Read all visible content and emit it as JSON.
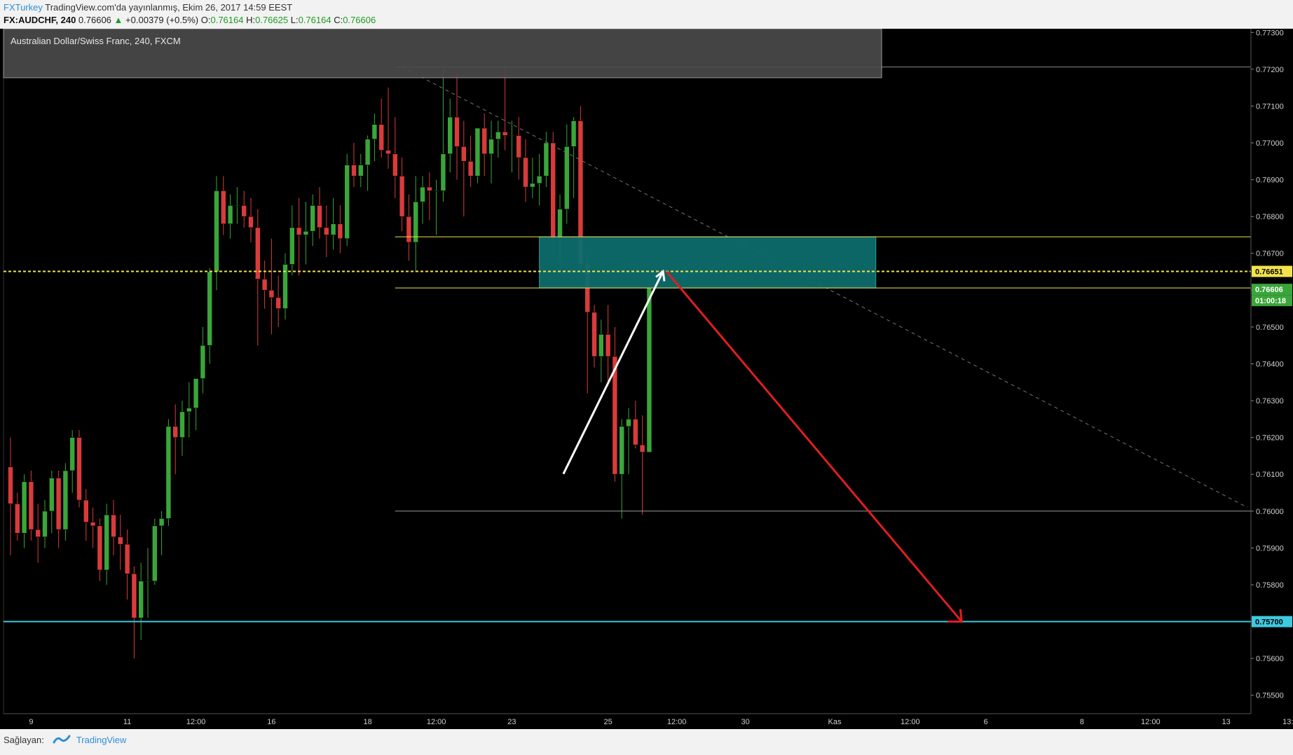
{
  "header": {
    "publisher": "FXTurkey",
    "published_text": "TradingView.com'da yayınlanmış, Ekim 26, 2017 14:59 EEST",
    "symbol": "FX:AUDCHF, 240",
    "last": "0.76606",
    "change": "+0.00379 (+0.5%)",
    "o_label": "O:",
    "o": "0.76164",
    "h_label": "H:",
    "h": "0.76625",
    "l_label": "L:",
    "l": "0.76164",
    "c_label": "C:",
    "c": "0.76606"
  },
  "legend_title": "Australian Dollar/Swiss Franc, 240, FXCM",
  "footer": {
    "label": "Sağlayan:",
    "brand": "TradingView"
  },
  "colors": {
    "background": "#000000",
    "up_candle": "#3aa63a",
    "down_candle": "#d93b3b",
    "zone_fill": "#0e6b6b",
    "yellow_line": "#f2e34a",
    "target_line": "#3fc9e0",
    "arrow_up": "#ffffff",
    "arrow_down": "#e01e1e"
  },
  "chart_data": {
    "type": "candlestick",
    "ylim": [
      0.7545,
      0.7731
    ],
    "y_ticks": [
      "0.77300",
      "0.77200",
      "0.77100",
      "0.77000",
      "0.76900",
      "0.76800",
      "0.76700",
      "0.76600",
      "0.76500",
      "0.76400",
      "0.76300",
      "0.76200",
      "0.76100",
      "0.76000",
      "0.75900",
      "0.75800",
      "0.75700",
      "0.75600",
      "0.75500"
    ],
    "x_ticks": [
      {
        "label": "9",
        "i": 3
      },
      {
        "label": "11",
        "i": 17
      },
      {
        "label": "12:00",
        "i": 27
      },
      {
        "label": "16",
        "i": 38
      },
      {
        "label": "18",
        "i": 52
      },
      {
        "label": "12:00",
        "i": 62
      },
      {
        "label": "23",
        "i": 73
      },
      {
        "label": "25",
        "i": 87
      },
      {
        "label": "12:00",
        "i": 97
      },
      {
        "label": "30",
        "i": 107
      },
      {
        "label": "Kas",
        "i": 120
      },
      {
        "label": "12:00",
        "i": 131
      },
      {
        "label": "6",
        "i": 142
      },
      {
        "label": "8",
        "i": 156
      },
      {
        "label": "12:00",
        "i": 166
      },
      {
        "label": "13",
        "i": 177
      },
      {
        "label": "13:",
        "i": 186
      }
    ],
    "candles": [
      {
        "o": 0.7612,
        "h": 0.762,
        "l": 0.7588,
        "c": 0.7602
      },
      {
        "o": 0.7602,
        "h": 0.7605,
        "l": 0.7592,
        "c": 0.7594
      },
      {
        "o": 0.7594,
        "h": 0.761,
        "l": 0.759,
        "c": 0.7608
      },
      {
        "o": 0.7608,
        "h": 0.7611,
        "l": 0.7592,
        "c": 0.7595
      },
      {
        "o": 0.7595,
        "h": 0.7602,
        "l": 0.7586,
        "c": 0.7593
      },
      {
        "o": 0.7593,
        "h": 0.7603,
        "l": 0.759,
        "c": 0.76
      },
      {
        "o": 0.76,
        "h": 0.7611,
        "l": 0.7594,
        "c": 0.7609
      },
      {
        "o": 0.7609,
        "h": 0.7611,
        "l": 0.759,
        "c": 0.7595
      },
      {
        "o": 0.7595,
        "h": 0.7613,
        "l": 0.7592,
        "c": 0.7611
      },
      {
        "o": 0.7611,
        "h": 0.7622,
        "l": 0.7605,
        "c": 0.762
      },
      {
        "o": 0.762,
        "h": 0.7622,
        "l": 0.7601,
        "c": 0.7603
      },
      {
        "o": 0.7603,
        "h": 0.7606,
        "l": 0.7592,
        "c": 0.7597
      },
      {
        "o": 0.7597,
        "h": 0.7601,
        "l": 0.759,
        "c": 0.7596
      },
      {
        "o": 0.7596,
        "h": 0.7598,
        "l": 0.7581,
        "c": 0.7584
      },
      {
        "o": 0.7584,
        "h": 0.7602,
        "l": 0.758,
        "c": 0.7599
      },
      {
        "o": 0.7599,
        "h": 0.7603,
        "l": 0.7588,
        "c": 0.7593
      },
      {
        "o": 0.7593,
        "h": 0.7599,
        "l": 0.7584,
        "c": 0.7591
      },
      {
        "o": 0.7591,
        "h": 0.7595,
        "l": 0.7576,
        "c": 0.7583
      },
      {
        "o": 0.7583,
        "h": 0.7585,
        "l": 0.756,
        "c": 0.7571
      },
      {
        "o": 0.7571,
        "h": 0.7586,
        "l": 0.7565,
        "c": 0.7581
      },
      {
        "o": 0.7581,
        "h": 0.759,
        "l": 0.7571,
        "c": 0.7581
      },
      {
        "o": 0.7581,
        "h": 0.7598,
        "l": 0.758,
        "c": 0.7596
      },
      {
        "o": 0.7596,
        "h": 0.76,
        "l": 0.7588,
        "c": 0.7598
      },
      {
        "o": 0.7598,
        "h": 0.7625,
        "l": 0.7596,
        "c": 0.7623
      },
      {
        "o": 0.7623,
        "h": 0.7629,
        "l": 0.761,
        "c": 0.762
      },
      {
        "o": 0.762,
        "h": 0.763,
        "l": 0.7615,
        "c": 0.7627
      },
      {
        "o": 0.7627,
        "h": 0.7635,
        "l": 0.762,
        "c": 0.7628
      },
      {
        "o": 0.7628,
        "h": 0.7636,
        "l": 0.7622,
        "c": 0.7636
      },
      {
        "o": 0.7636,
        "h": 0.765,
        "l": 0.7632,
        "c": 0.7645
      },
      {
        "o": 0.7645,
        "h": 0.7666,
        "l": 0.764,
        "c": 0.7665
      },
      {
        "o": 0.7665,
        "h": 0.7691,
        "l": 0.766,
        "c": 0.7687
      },
      {
        "o": 0.7687,
        "h": 0.7691,
        "l": 0.7675,
        "c": 0.7678
      },
      {
        "o": 0.7678,
        "h": 0.7686,
        "l": 0.7674,
        "c": 0.7683
      },
      {
        "o": 0.7683,
        "h": 0.7688,
        "l": 0.7678,
        "c": 0.7683
      },
      {
        "o": 0.7683,
        "h": 0.7687,
        "l": 0.7677,
        "c": 0.768
      },
      {
        "o": 0.768,
        "h": 0.7685,
        "l": 0.7673,
        "c": 0.7677
      },
      {
        "o": 0.7677,
        "h": 0.7682,
        "l": 0.7645,
        "c": 0.7663
      },
      {
        "o": 0.7663,
        "h": 0.7668,
        "l": 0.7655,
        "c": 0.766
      },
      {
        "o": 0.766,
        "h": 0.7674,
        "l": 0.7648,
        "c": 0.7658
      },
      {
        "o": 0.7658,
        "h": 0.7664,
        "l": 0.765,
        "c": 0.7655
      },
      {
        "o": 0.7655,
        "h": 0.767,
        "l": 0.7652,
        "c": 0.7667
      },
      {
        "o": 0.7667,
        "h": 0.7683,
        "l": 0.7664,
        "c": 0.7677
      },
      {
        "o": 0.7677,
        "h": 0.7685,
        "l": 0.7664,
        "c": 0.7675
      },
      {
        "o": 0.7675,
        "h": 0.7684,
        "l": 0.7667,
        "c": 0.7676
      },
      {
        "o": 0.7676,
        "h": 0.7686,
        "l": 0.7672,
        "c": 0.7683
      },
      {
        "o": 0.7683,
        "h": 0.7688,
        "l": 0.7674,
        "c": 0.7677
      },
      {
        "o": 0.7677,
        "h": 0.7683,
        "l": 0.7669,
        "c": 0.7675
      },
      {
        "o": 0.7675,
        "h": 0.7685,
        "l": 0.7671,
        "c": 0.7678
      },
      {
        "o": 0.7678,
        "h": 0.7683,
        "l": 0.767,
        "c": 0.7674
      },
      {
        "o": 0.7674,
        "h": 0.7697,
        "l": 0.7672,
        "c": 0.7694
      },
      {
        "o": 0.7694,
        "h": 0.77,
        "l": 0.7688,
        "c": 0.7691
      },
      {
        "o": 0.7691,
        "h": 0.7697,
        "l": 0.7688,
        "c": 0.7694
      },
      {
        "o": 0.7694,
        "h": 0.7702,
        "l": 0.7687,
        "c": 0.7701
      },
      {
        "o": 0.7701,
        "h": 0.7708,
        "l": 0.7695,
        "c": 0.7705
      },
      {
        "o": 0.7705,
        "h": 0.7712,
        "l": 0.7696,
        "c": 0.7698
      },
      {
        "o": 0.7698,
        "h": 0.7715,
        "l": 0.7693,
        "c": 0.7697
      },
      {
        "o": 0.7697,
        "h": 0.7707,
        "l": 0.7685,
        "c": 0.7691
      },
      {
        "o": 0.7691,
        "h": 0.7696,
        "l": 0.7676,
        "c": 0.768
      },
      {
        "o": 0.768,
        "h": 0.7686,
        "l": 0.7668,
        "c": 0.7673
      },
      {
        "o": 0.7673,
        "h": 0.7691,
        "l": 0.7665,
        "c": 0.7684
      },
      {
        "o": 0.7684,
        "h": 0.7691,
        "l": 0.7678,
        "c": 0.7688
      },
      {
        "o": 0.7688,
        "h": 0.7692,
        "l": 0.7679,
        "c": 0.7687
      },
      {
        "o": 0.7687,
        "h": 0.769,
        "l": 0.7675,
        "c": 0.7687
      },
      {
        "o": 0.7687,
        "h": 0.772,
        "l": 0.7684,
        "c": 0.7697
      },
      {
        "o": 0.7697,
        "h": 0.7712,
        "l": 0.7692,
        "c": 0.7707
      },
      {
        "o": 0.7707,
        "h": 0.7719,
        "l": 0.769,
        "c": 0.7699
      },
      {
        "o": 0.7699,
        "h": 0.7706,
        "l": 0.768,
        "c": 0.7695
      },
      {
        "o": 0.7695,
        "h": 0.7702,
        "l": 0.7688,
        "c": 0.7691
      },
      {
        "o": 0.7691,
        "h": 0.7704,
        "l": 0.7689,
        "c": 0.7704
      },
      {
        "o": 0.7704,
        "h": 0.7708,
        "l": 0.7691,
        "c": 0.7697
      },
      {
        "o": 0.7697,
        "h": 0.7706,
        "l": 0.7689,
        "c": 0.7701
      },
      {
        "o": 0.7701,
        "h": 0.7706,
        "l": 0.7696,
        "c": 0.7703
      },
      {
        "o": 0.7703,
        "h": 0.7721,
        "l": 0.7698,
        "c": 0.7702
      },
      {
        "o": 0.7702,
        "h": 0.7706,
        "l": 0.7692,
        "c": 0.7702
      },
      {
        "o": 0.7702,
        "h": 0.7707,
        "l": 0.769,
        "c": 0.7696
      },
      {
        "o": 0.7696,
        "h": 0.7701,
        "l": 0.7684,
        "c": 0.7688
      },
      {
        "o": 0.7688,
        "h": 0.7696,
        "l": 0.7685,
        "c": 0.7689
      },
      {
        "o": 0.7689,
        "h": 0.7697,
        "l": 0.7683,
        "c": 0.7691
      },
      {
        "o": 0.7691,
        "h": 0.7703,
        "l": 0.7688,
        "c": 0.77
      },
      {
        "o": 0.77,
        "h": 0.7703,
        "l": 0.767,
        "c": 0.7674
      },
      {
        "o": 0.7674,
        "h": 0.7686,
        "l": 0.7668,
        "c": 0.7682
      },
      {
        "o": 0.7682,
        "h": 0.7705,
        "l": 0.7678,
        "c": 0.7699
      },
      {
        "o": 0.7699,
        "h": 0.7707,
        "l": 0.7685,
        "c": 0.7706
      },
      {
        "o": 0.7706,
        "h": 0.771,
        "l": 0.7666,
        "c": 0.7667
      },
      {
        "o": 0.7667,
        "h": 0.767,
        "l": 0.7632,
        "c": 0.7654
      },
      {
        "o": 0.7654,
        "h": 0.7656,
        "l": 0.7639,
        "c": 0.7642
      },
      {
        "o": 0.7642,
        "h": 0.7652,
        "l": 0.7635,
        "c": 0.7648
      },
      {
        "o": 0.7648,
        "h": 0.7656,
        "l": 0.7634,
        "c": 0.7642
      },
      {
        "o": 0.7642,
        "h": 0.765,
        "l": 0.7608,
        "c": 0.761
      },
      {
        "o": 0.761,
        "h": 0.7625,
        "l": 0.7598,
        "c": 0.7623
      },
      {
        "o": 0.7623,
        "h": 0.7628,
        "l": 0.761,
        "c": 0.7625
      },
      {
        "o": 0.7625,
        "h": 0.763,
        "l": 0.7617,
        "c": 0.7618
      },
      {
        "o": 0.7618,
        "h": 0.7626,
        "l": 0.7599,
        "c": 0.7616
      },
      {
        "o": 0.7616,
        "h": 0.7662,
        "l": 0.7616,
        "c": 0.7661
      }
    ],
    "lines": {
      "resistance_top": 0.76745,
      "resistance_bottom": 0.76606,
      "current_price_dashed": 0.76651,
      "support": 0.76,
      "target": 0.757,
      "high_line": 0.77206
    },
    "price_labels": {
      "dashed": "0.76651",
      "current": "0.76606",
      "countdown": "01:00:18",
      "target": "0.75700"
    }
  }
}
